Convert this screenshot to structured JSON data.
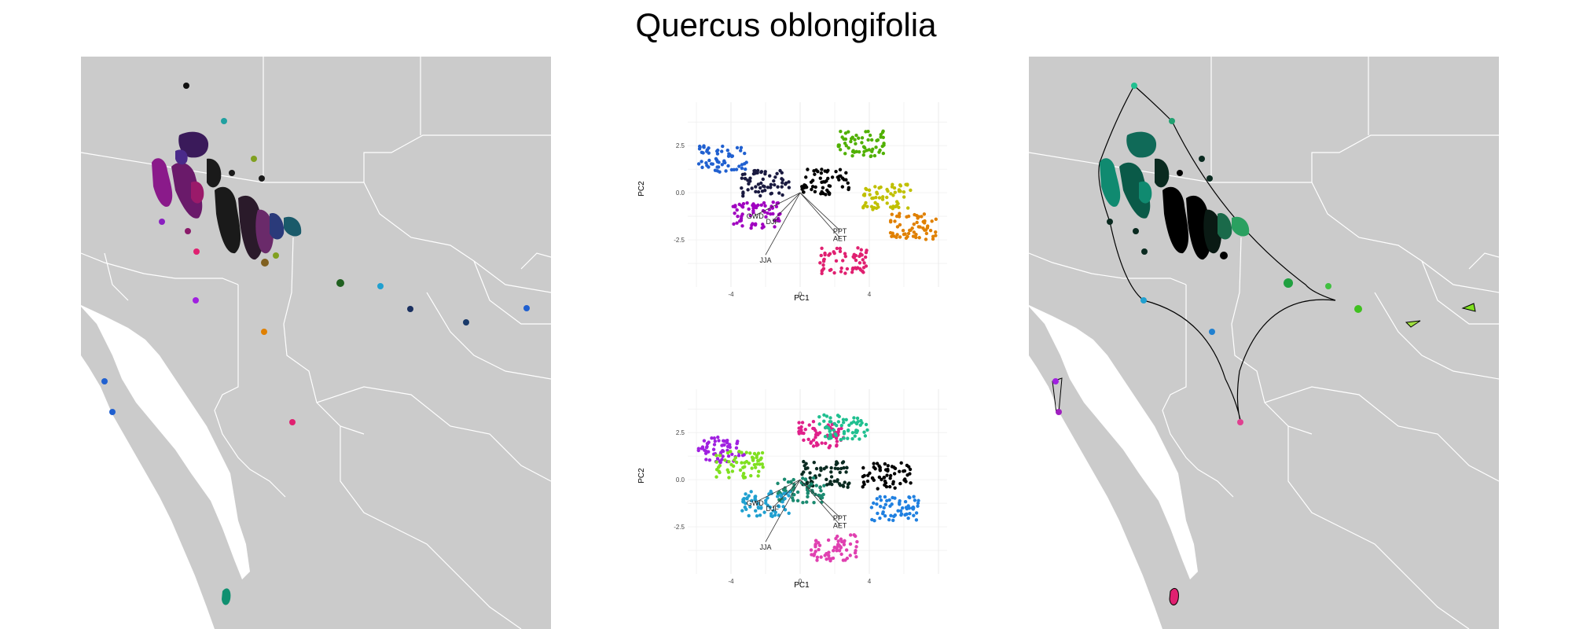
{
  "title": "Quercus oblongifolia",
  "chart_data": [
    {
      "type": "scatter",
      "panel": "pca-top",
      "xlabel": "PC1",
      "ylabel": "PC2",
      "xticks": [
        -4,
        0,
        4
      ],
      "yticks": [
        2.5,
        0.0,
        -2.5
      ],
      "xlim": [
        -6.5,
        8.5
      ],
      "ylim": [
        -5,
        4.8
      ],
      "grid": true,
      "vectors": [
        "GWD",
        "DJF",
        "PPT",
        "AET",
        "JJA"
      ],
      "color_scheme": "hue by PC position",
      "clusters": [
        {
          "color": "#2060d0",
          "cx": -4.5,
          "cy": 1.8
        },
        {
          "color": "#1a1a40",
          "cx": -2.0,
          "cy": 0.5
        },
        {
          "color": "#000000",
          "cx": 1.5,
          "cy": 0.6
        },
        {
          "color": "#50b000",
          "cx": 3.5,
          "cy": 2.6
        },
        {
          "color": "#c0c000",
          "cx": 5.0,
          "cy": -0.2
        },
        {
          "color": "#e08000",
          "cx": 6.5,
          "cy": -1.8
        },
        {
          "color": "#a000c0",
          "cx": -2.5,
          "cy": -1.2
        },
        {
          "color": "#e02070",
          "cx": 2.5,
          "cy": -3.6
        }
      ]
    },
    {
      "type": "scatter",
      "panel": "pca-bottom",
      "xlabel": "PC1",
      "ylabel": "PC2",
      "xticks": [
        -4,
        0,
        4
      ],
      "yticks": [
        2.5,
        0.0,
        -2.5
      ],
      "xlim": [
        -6.5,
        8.5
      ],
      "ylim": [
        -5,
        4.8
      ],
      "grid": true,
      "vectors": [
        "GWD",
        "DJF",
        "PPT",
        "AET",
        "JJA"
      ],
      "clusters": [
        {
          "color": "#a020e0",
          "cx": -4.5,
          "cy": 1.6
        },
        {
          "color": "#e0208a",
          "cx": 1.2,
          "cy": 2.4
        },
        {
          "color": "#20c090",
          "cx": 2.5,
          "cy": 2.8
        },
        {
          "color": "#80e020",
          "cx": -3.5,
          "cy": 0.8
        },
        {
          "color": "#0a2a20",
          "cx": 1.5,
          "cy": 0.3
        },
        {
          "color": "#1a8a70",
          "cx": 0.0,
          "cy": -0.6
        },
        {
          "color": "#000000",
          "cx": 5.0,
          "cy": 0.2
        },
        {
          "color": "#20a0d0",
          "cx": -2.0,
          "cy": -1.3
        },
        {
          "color": "#2080e0",
          "cx": 5.5,
          "cy": -1.6
        },
        {
          "color": "#e040b0",
          "cx": 2.0,
          "cy": -3.6
        }
      ]
    }
  ],
  "maps": {
    "left": {
      "background": "#cbcbcb",
      "border_color": "#ffffff"
    },
    "right": {
      "background": "#cbcbcb",
      "border_color": "#ffffff",
      "hull_color": "#000000"
    }
  }
}
